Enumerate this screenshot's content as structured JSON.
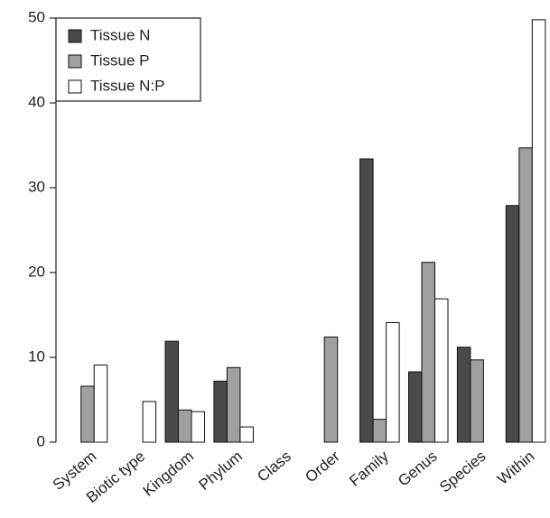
{
  "chart_data": {
    "type": "bar",
    "categories": [
      "System",
      "Biotic type",
      "Kingdom",
      "Phylum",
      "Class",
      "Order",
      "Family",
      "Genus",
      "Species",
      "Within"
    ],
    "series": [
      {
        "name": "Tissue N",
        "color": "#4a4a4a",
        "values": [
          0,
          0,
          11.9,
          7.2,
          0,
          0,
          33.4,
          8.3,
          11.2,
          27.9
        ]
      },
      {
        "name": "Tissue P",
        "color": "#a0a0a0",
        "values": [
          6.6,
          0,
          3.8,
          8.8,
          0,
          12.4,
          2.7,
          21.2,
          9.7,
          34.7
        ]
      },
      {
        "name": "Tissue N:P",
        "color": "#ffffff",
        "values": [
          9.1,
          4.8,
          3.6,
          1.8,
          0,
          0,
          14.1,
          16.9,
          0,
          49.8
        ]
      }
    ],
    "ylim": [
      0,
      50
    ],
    "yticks": [
      0,
      10,
      20,
      30,
      40,
      50
    ],
    "legend": "top-left"
  }
}
